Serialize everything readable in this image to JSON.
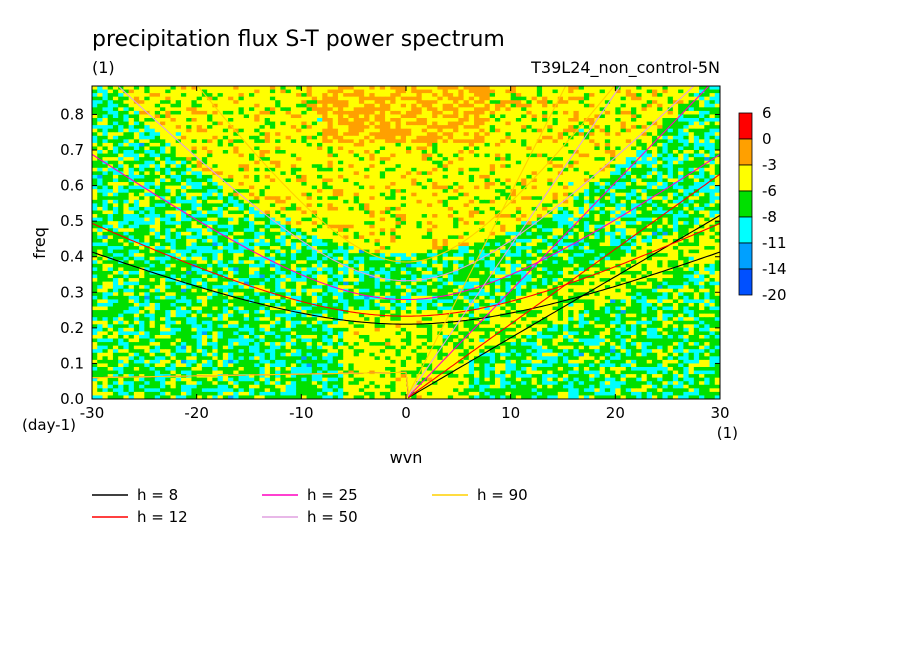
{
  "chart_data": {
    "type": "heatmap",
    "title": "precipitation flux S-T power spectrum",
    "subtitle_left": "(1)",
    "subtitle_right": "T39L24_non_control-5N",
    "xlabel": "wvn",
    "ylabel": "freq",
    "x_unit": "(1)",
    "y_unit": "(day-1)",
    "xlim": [
      -30,
      30
    ],
    "ylim": [
      0,
      0.88
    ],
    "x_ticks": [
      "-30",
      "-20",
      "-10",
      "0",
      "10",
      "20",
      "30"
    ],
    "x_tick_values": [
      -30,
      -20,
      -10,
      0,
      10,
      20,
      30
    ],
    "y_ticks": [
      "0.0",
      "0.1",
      "0.2",
      "0.3",
      "0.4",
      "0.5",
      "0.6",
      "0.7",
      "0.8"
    ],
    "y_tick_values": [
      0,
      0.1,
      0.2,
      0.3,
      0.4,
      0.5,
      0.6,
      0.7,
      0.8
    ],
    "colorbar": {
      "labels": [
        "6",
        "0",
        "-3",
        "-6",
        "-8",
        "-11",
        "-14",
        "-20"
      ],
      "colors": [
        "#ff0000",
        "#ffa000",
        "#ffff00",
        "#00e000",
        "#00ffff",
        "#00a0ff",
        "#0050ff"
      ]
    },
    "field_description_levels": [
      6,
      0,
      -3,
      -6,
      -8,
      -11,
      -14,
      -20
    ],
    "dispersion_curves": [
      {
        "name": "h =  8",
        "color": "#000000",
        "h": 8
      },
      {
        "name": "h = 12",
        "color": "#ff0000",
        "h": 12
      },
      {
        "name": "h = 25",
        "color": "#ff00c0",
        "h": 25
      },
      {
        "name": "h = 50",
        "color": "#e0a0e0",
        "h": 50
      },
      {
        "name": "h = 90",
        "color": "#ffd000",
        "h": 90
      }
    ],
    "grid": false,
    "legend_position": "bottom"
  }
}
